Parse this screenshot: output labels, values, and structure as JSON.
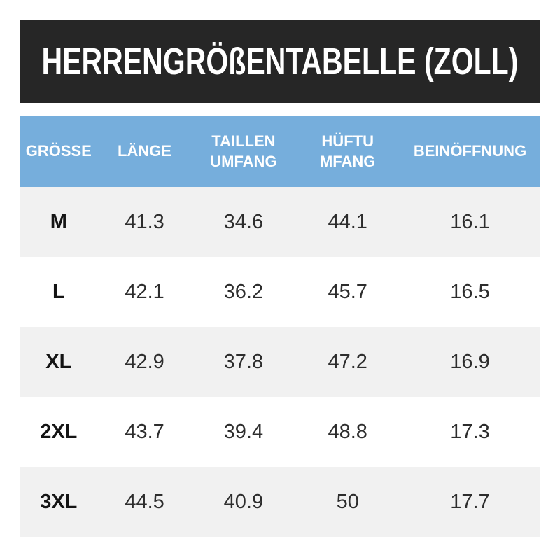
{
  "title": "HERRENGRÖßENTABELLE (ZOLL)",
  "chart_data": {
    "type": "table",
    "title": "HERRENGRÖßENTABELLE (ZOLL)",
    "title_meaning": "Men's size chart (inches)",
    "columns": [
      "GRÖSSE",
      "LÄNGE",
      "TAILLEN UMFANG",
      "HÜFTUMFANG",
      "BEINÖFFNUNG"
    ],
    "rows": [
      [
        "M",
        41.3,
        34.6,
        44.1,
        16.1
      ],
      [
        "L",
        42.1,
        36.2,
        45.7,
        16.5
      ],
      [
        "XL",
        42.9,
        37.8,
        47.2,
        16.9
      ],
      [
        "2XL",
        43.7,
        39.4,
        48.8,
        17.3
      ],
      [
        "3XL",
        44.5,
        40.9,
        50,
        17.7
      ]
    ]
  },
  "display": {
    "header_labels": [
      "GRÖSSE",
      "LÄNGE",
      "TAILLEN\nUMFANG",
      "HÜFTU\nMFANG",
      "BEINÖFFNUNG"
    ],
    "rows": [
      {
        "size": "M",
        "values": [
          "41.3",
          "34.6",
          "44.1",
          "16.1"
        ]
      },
      {
        "size": "L",
        "values": [
          "42.1",
          "36.2",
          "45.7",
          "16.5"
        ]
      },
      {
        "size": "XL",
        "values": [
          "42.9",
          "37.8",
          "47.2",
          "16.9"
        ]
      },
      {
        "size": "2XL",
        "values": [
          "43.7",
          "39.4",
          "48.8",
          "17.3"
        ]
      },
      {
        "size": "3XL",
        "values": [
          "44.5",
          "40.9",
          "50",
          "17.7"
        ]
      }
    ]
  },
  "colors": {
    "title_bar_bg": "#262626",
    "title_text": "#ffffff",
    "header_bg": "#76aedc",
    "header_text": "#ffffff",
    "row_alt_bg": "#f1f1f1",
    "row_bg": "#ffffff",
    "size_text": "#141414",
    "value_text": "#2d2d2d",
    "page_bg": "#ffffff"
  }
}
